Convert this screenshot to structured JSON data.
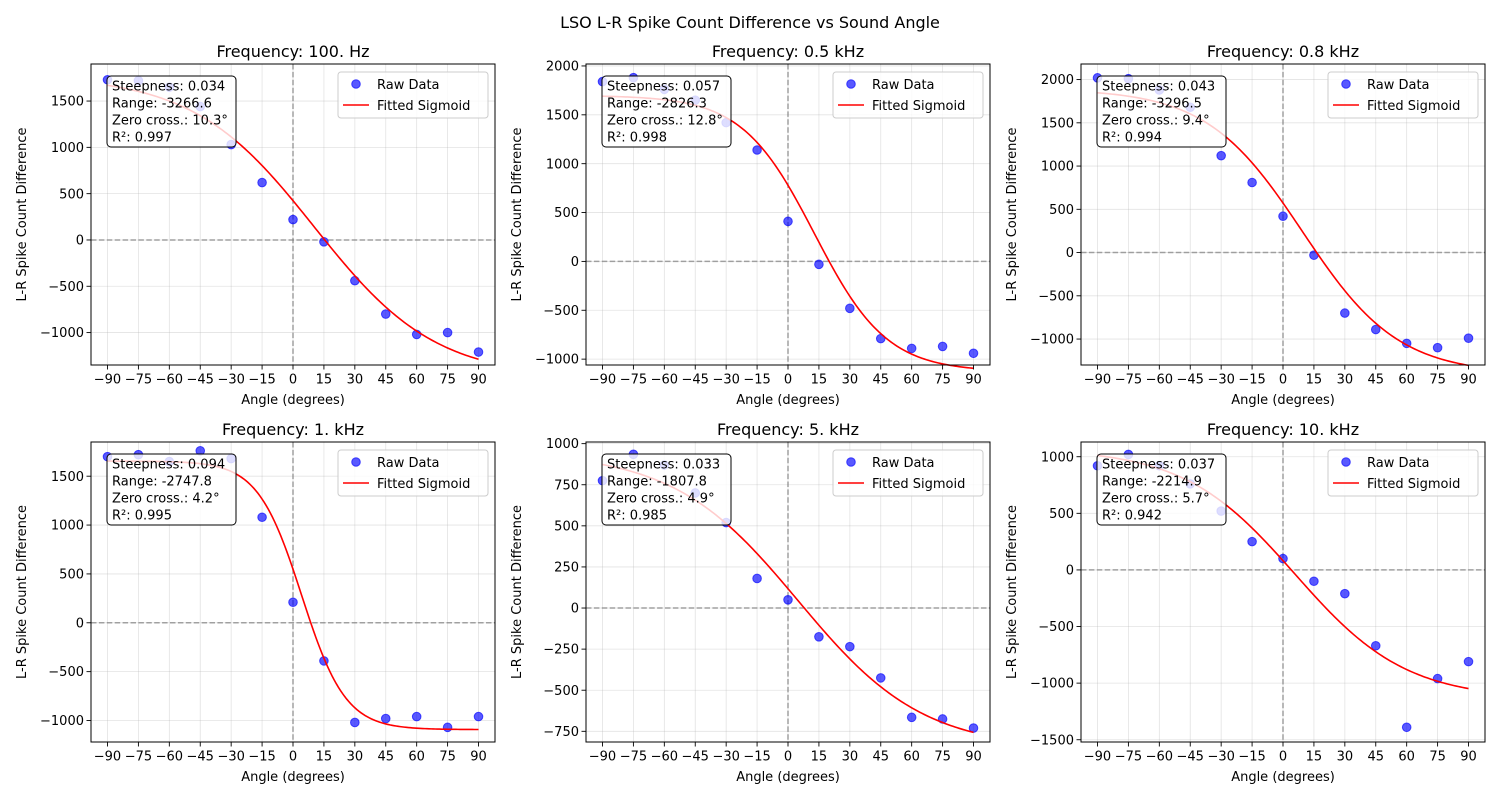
{
  "figure_title": "LSO L-R Spike Count Difference vs Sound Angle",
  "chart_data": [
    {
      "type": "scatter",
      "title": "Frequency: 100. Hz",
      "xlabel": "Angle (degrees)",
      "ylabel": "L-R Spike Count Difference",
      "x": [
        -90,
        -75,
        -60,
        -45,
        -30,
        -15,
        0,
        15,
        30,
        45,
        60,
        75,
        90
      ],
      "xticks": [
        -90,
        -75,
        -60,
        -45,
        -30,
        -15,
        0,
        15,
        30,
        45,
        60,
        75,
        90
      ],
      "xlim": [
        -98,
        98
      ],
      "ylim": [
        -1350,
        1900
      ],
      "yticks": [
        -1000,
        -500,
        0,
        500,
        1000,
        1500
      ],
      "series": [
        {
          "name": "Raw Data",
          "values": [
            1730,
            1720,
            1650,
            1440,
            1030,
            620,
            220,
            -20,
            -440,
            -800,
            -1020,
            -1000,
            -1210
          ],
          "color": "#0000ff"
        },
        {
          "name": "Fitted Sigmoid",
          "params": {
            "steepness": 0.034,
            "range": -3266.6,
            "zero_cross": 10.3
          },
          "color": "#ff0000"
        }
      ],
      "annotation": [
        "Steepness: 0.034",
        "Range: -3266.6",
        "Zero cross.: 10.3°",
        "R²: 0.997"
      ],
      "reference_lines": {
        "x": 0,
        "y": 0
      },
      "legend": "top-right",
      "grid": true
    },
    {
      "type": "scatter",
      "title": "Frequency: 0.5 kHz",
      "xlabel": "Angle (degrees)",
      "ylabel": "L-R Spike Count Difference",
      "x": [
        -90,
        -75,
        -60,
        -45,
        -30,
        -15,
        0,
        15,
        30,
        45,
        60,
        75,
        90
      ],
      "xticks": [
        -90,
        -75,
        -60,
        -45,
        -30,
        -15,
        0,
        15,
        30,
        45,
        60,
        75,
        90
      ],
      "xlim": [
        -98,
        98
      ],
      "ylim": [
        -1060,
        2020
      ],
      "yticks": [
        -1000,
        -500,
        0,
        500,
        1000,
        1500,
        2000
      ],
      "series": [
        {
          "name": "Raw Data",
          "values": [
            1840,
            1880,
            1760,
            1650,
            1420,
            1140,
            410,
            -30,
            -480,
            -790,
            -890,
            -870,
            -940
          ],
          "color": "#0000ff"
        },
        {
          "name": "Fitted Sigmoid",
          "params": {
            "steepness": 0.057,
            "range": -2826.3,
            "zero_cross": 12.8
          },
          "color": "#ff0000"
        }
      ],
      "annotation": [
        "Steepness: 0.057",
        "Range: -2826.3",
        "Zero cross.: 12.8°",
        "R²: 0.998"
      ],
      "reference_lines": {
        "x": 0,
        "y": 0
      },
      "legend": "top-right",
      "grid": true
    },
    {
      "type": "scatter",
      "title": "Frequency: 0.8 kHz",
      "xlabel": "Angle (degrees)",
      "ylabel": "L-R Spike Count Difference",
      "x": [
        -90,
        -75,
        -60,
        -45,
        -30,
        -15,
        0,
        15,
        30,
        45,
        60,
        75,
        90
      ],
      "xticks": [
        -90,
        -75,
        -60,
        -45,
        -30,
        -15,
        0,
        15,
        30,
        45,
        60,
        75,
        90
      ],
      "xlim": [
        -98,
        98
      ],
      "ylim": [
        -1300,
        2180
      ],
      "yticks": [
        -1000,
        -500,
        0,
        500,
        1000,
        1500,
        2000
      ],
      "series": [
        {
          "name": "Raw Data",
          "values": [
            2020,
            2010,
            1880,
            1680,
            1120,
            810,
            420,
            -30,
            -700,
            -890,
            -1050,
            -1100,
            -990
          ],
          "color": "#0000ff"
        },
        {
          "name": "Fitted Sigmoid",
          "params": {
            "steepness": 0.043,
            "range": -3296.5,
            "zero_cross": 9.4
          },
          "color": "#ff0000"
        }
      ],
      "annotation": [
        "Steepness: 0.043",
        "Range: -3296.5",
        "Zero cross.: 9.4°",
        "R²: 0.994"
      ],
      "reference_lines": {
        "x": 0,
        "y": 0
      },
      "legend": "top-right",
      "grid": true
    },
    {
      "type": "scatter",
      "title": "Frequency: 1. kHz",
      "xlabel": "Angle (degrees)",
      "ylabel": "L-R Spike Count Difference",
      "x": [
        -90,
        -75,
        -60,
        -45,
        -30,
        -15,
        0,
        15,
        30,
        45,
        60,
        75,
        90
      ],
      "xticks": [
        -90,
        -75,
        -60,
        -45,
        -30,
        -15,
        0,
        15,
        30,
        45,
        60,
        75,
        90
      ],
      "xlim": [
        -98,
        98
      ],
      "ylim": [
        -1220,
        1850
      ],
      "yticks": [
        -1000,
        -500,
        0,
        500,
        1000,
        1500
      ],
      "series": [
        {
          "name": "Raw Data",
          "values": [
            1700,
            1720,
            1650,
            1760,
            1680,
            1080,
            210,
            -390,
            -1020,
            -980,
            -960,
            -1070,
            -960
          ],
          "color": "#0000ff"
        },
        {
          "name": "Fitted Sigmoid",
          "params": {
            "steepness": 0.094,
            "range": -2747.8,
            "zero_cross": 4.2
          },
          "color": "#ff0000"
        }
      ],
      "annotation": [
        "Steepness: 0.094",
        "Range: -2747.8",
        "Zero cross.: 4.2°",
        "R²: 0.995"
      ],
      "reference_lines": {
        "x": 0,
        "y": 0
      },
      "legend": "top-right",
      "grid": true
    },
    {
      "type": "scatter",
      "title": "Frequency: 5. kHz",
      "xlabel": "Angle (degrees)",
      "ylabel": "L-R Spike Count Difference",
      "x": [
        -90,
        -75,
        -60,
        -45,
        -30,
        -15,
        0,
        15,
        30,
        45,
        60,
        75,
        90
      ],
      "xticks": [
        -90,
        -75,
        -60,
        -45,
        -30,
        -15,
        0,
        15,
        30,
        45,
        60,
        75,
        90
      ],
      "xlim": [
        -98,
        98
      ],
      "ylim": [
        -815,
        1010
      ],
      "yticks": [
        -750,
        -500,
        -250,
        0,
        250,
        500,
        750,
        1000
      ],
      "series": [
        {
          "name": "Raw Data",
          "values": [
            775,
            935,
            870,
            700,
            520,
            180,
            50,
            -175,
            -235,
            -425,
            -665,
            -675,
            -730
          ],
          "color": "#0000ff"
        },
        {
          "name": "Fitted Sigmoid",
          "params": {
            "steepness": 0.033,
            "range": -1807.8,
            "zero_cross": 4.9
          },
          "color": "#ff0000"
        }
      ],
      "annotation": [
        "Steepness: 0.033",
        "Range: -1807.8",
        "Zero cross.: 4.9°",
        "R²: 0.985"
      ],
      "reference_lines": {
        "x": 0,
        "y": 0
      },
      "legend": "top-right",
      "grid": true
    },
    {
      "type": "scatter",
      "title": "Frequency: 10. kHz",
      "xlabel": "Angle (degrees)",
      "ylabel": "L-R Spike Count Difference",
      "x": [
        -90,
        -75,
        -60,
        -45,
        -30,
        -15,
        0,
        15,
        30,
        45,
        60,
        75,
        90
      ],
      "xticks": [
        -90,
        -75,
        -60,
        -45,
        -30,
        -15,
        0,
        15,
        30,
        45,
        60,
        75,
        90
      ],
      "xlim": [
        -98,
        98
      ],
      "ylim": [
        -1520,
        1130
      ],
      "yticks": [
        -1500,
        -1000,
        -500,
        0,
        500,
        1000
      ],
      "series": [
        {
          "name": "Raw Data",
          "values": [
            920,
            1020,
            920,
            760,
            520,
            250,
            100,
            -100,
            -210,
            -670,
            -1390,
            -960,
            -810
          ],
          "color": "#0000ff"
        },
        {
          "name": "Fitted Sigmoid",
          "params": {
            "steepness": 0.037,
            "range": -2214.9,
            "zero_cross": 5.7
          },
          "color": "#ff0000"
        }
      ],
      "annotation": [
        "Steepness: 0.037",
        "Range: -2214.9",
        "Zero cross.: 5.7°",
        "R²: 0.942"
      ],
      "reference_lines": {
        "x": 0,
        "y": 0
      },
      "legend": "top-right",
      "grid": true
    }
  ]
}
